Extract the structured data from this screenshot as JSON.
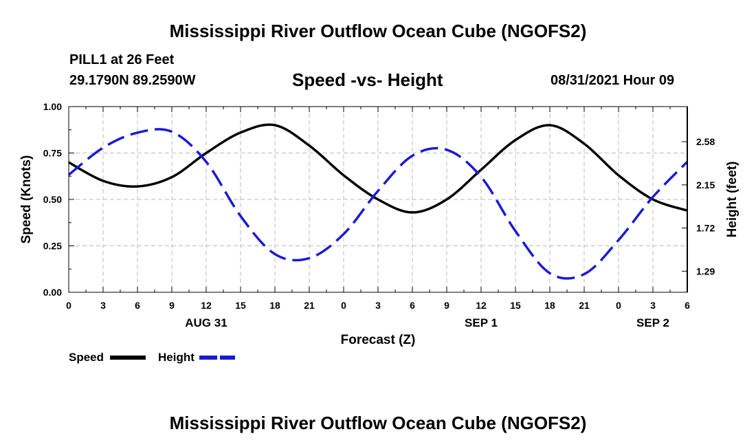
{
  "header": {
    "title": "Mississippi River Outflow Ocean Cube (NGOFS2)",
    "station": "PILL1 at 26 Feet",
    "coords": "29.1790N  89.2590W",
    "chart_title": "Speed -vs- Height",
    "datetime": "08/31/2021 Hour 09"
  },
  "footer": {
    "title": "Mississippi River Outflow Ocean Cube (NGOFS2)"
  },
  "colors": {
    "speed": "#000000",
    "height": "#1a1ad6",
    "grid": "#bbbbbb"
  },
  "chart_data": {
    "type": "line",
    "title": "Speed -vs- Height",
    "xlabel": "Forecast (Z)",
    "ylabel_left": "Speed (Knots)",
    "ylabel_right": "Height (feet)",
    "x": [
      0,
      3,
      6,
      9,
      12,
      15,
      18,
      21,
      24,
      27,
      30,
      33,
      36,
      39,
      42,
      45,
      48,
      51,
      54
    ],
    "x_tick_labels": [
      "0",
      "3",
      "6",
      "9",
      "12",
      "15",
      "18",
      "21",
      "0",
      "3",
      "6",
      "9",
      "12",
      "15",
      "18",
      "21",
      "0",
      "3",
      "6"
    ],
    "date_labels": [
      {
        "x": 12,
        "label": "AUG 31"
      },
      {
        "x": 36,
        "label": "SEP 1"
      },
      {
        "x": 51,
        "label": "SEP 2"
      }
    ],
    "xlim": [
      0,
      54
    ],
    "ylim_left": [
      0,
      1.0
    ],
    "yticks_left": [
      0,
      0.25,
      0.5,
      0.75,
      1.0
    ],
    "ytick_labels_left": [
      "0.00",
      "0.25",
      "0.50",
      "0.75",
      "1.00"
    ],
    "ylim_right": [
      1.08,
      2.93
    ],
    "yticks_right": [
      1.29,
      1.72,
      2.15,
      2.58
    ],
    "ytick_labels_right": [
      "1.29",
      "1.72",
      "2.15",
      "2.58"
    ],
    "grid": true,
    "legend_position": "bottom-left",
    "series": [
      {
        "name": "Speed",
        "axis": "left",
        "style": "solid",
        "values": [
          0.7,
          0.6,
          0.57,
          0.62,
          0.75,
          0.86,
          0.9,
          0.79,
          0.63,
          0.5,
          0.43,
          0.5,
          0.66,
          0.82,
          0.9,
          0.8,
          0.63,
          0.5,
          0.44
        ]
      },
      {
        "name": "Height",
        "axis": "right",
        "style": "dashed",
        "values": [
          2.25,
          2.52,
          2.67,
          2.68,
          2.38,
          1.84,
          1.46,
          1.42,
          1.66,
          2.09,
          2.44,
          2.5,
          2.23,
          1.69,
          1.27,
          1.26,
          1.6,
          2.03,
          2.38
        ]
      }
    ]
  }
}
